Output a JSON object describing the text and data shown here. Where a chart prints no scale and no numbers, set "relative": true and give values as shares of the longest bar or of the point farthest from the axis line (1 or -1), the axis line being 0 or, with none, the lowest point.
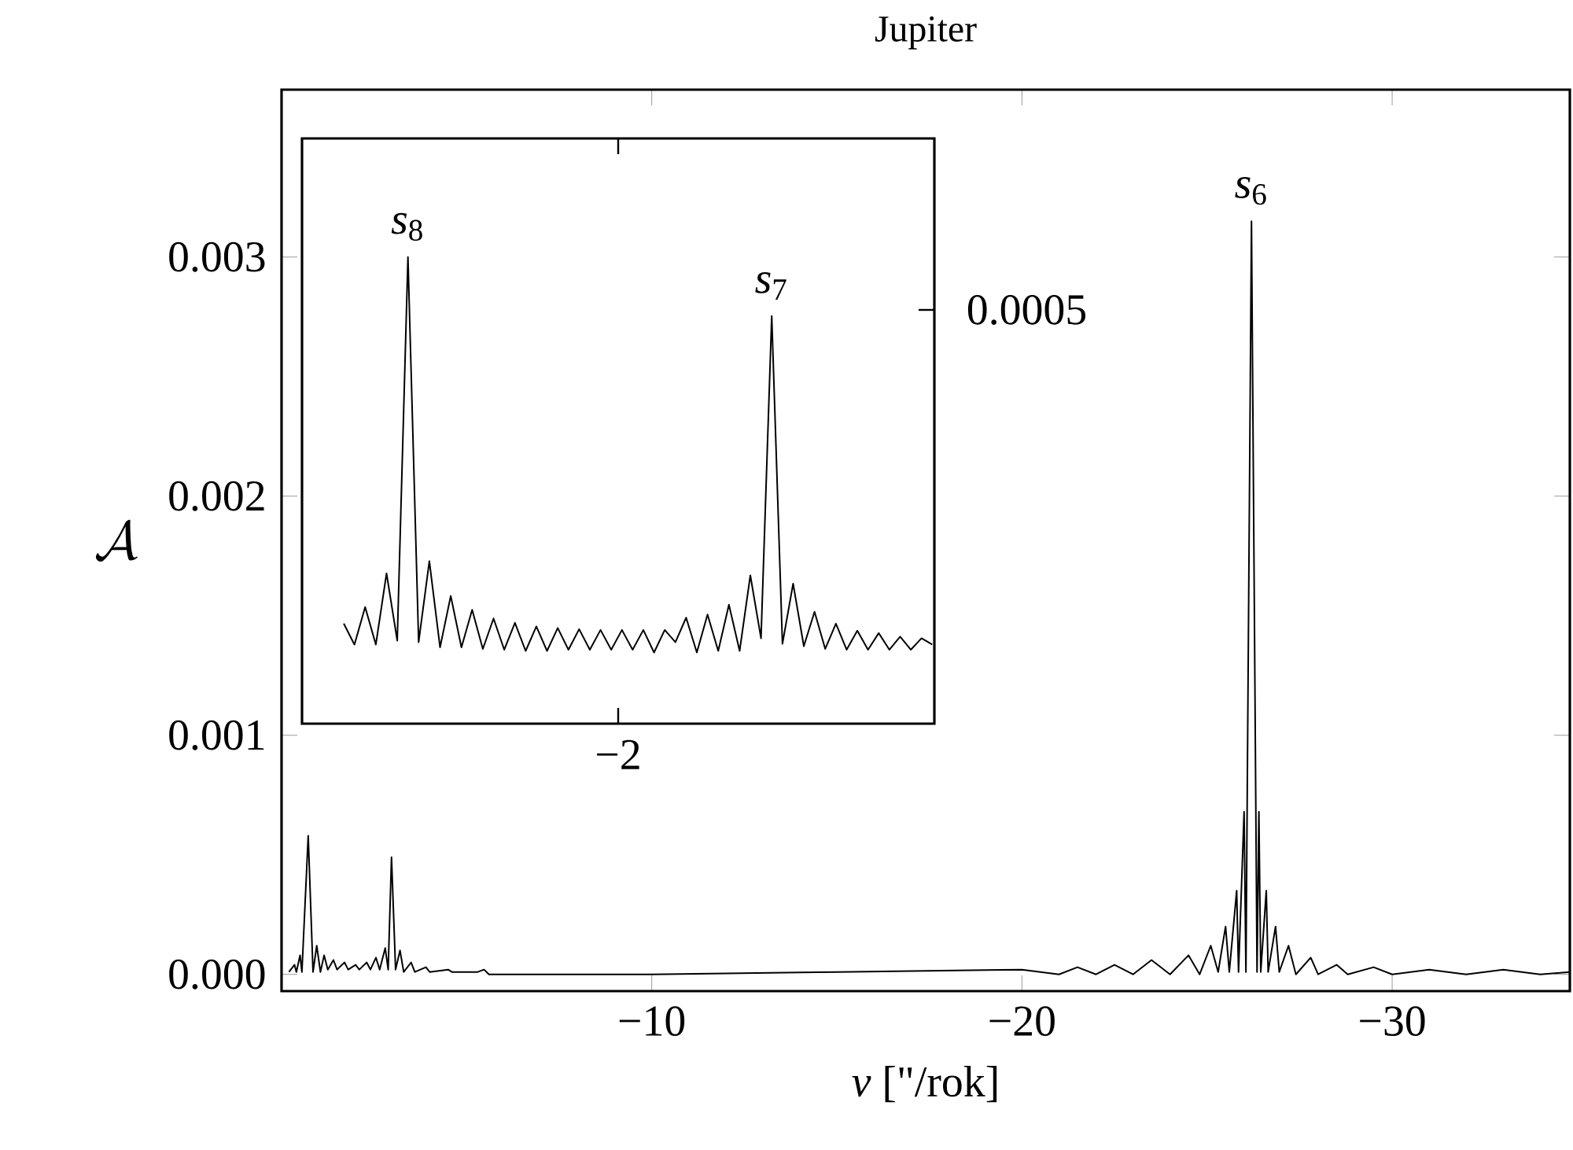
{
  "chart_data": [
    {
      "type": "line",
      "title": "Jupiter",
      "xlabel": "*ν* [\"/rok]",
      "ylabel": "\\mathcal{A}",
      "color": "#000000",
      "x": [
        -0.2,
        -0.35,
        -0.4,
        -0.5,
        -0.55,
        -0.72,
        -0.85,
        -0.95,
        -1.05,
        -1.15,
        -1.25,
        -1.4,
        -1.5,
        -1.7,
        -1.8,
        -2.0,
        -2.1,
        -2.3,
        -2.4,
        -2.55,
        -2.65,
        -2.8,
        -2.88,
        -2.97,
        -3.08,
        -3.2,
        -3.3,
        -3.5,
        -3.6,
        -3.9,
        -4.0,
        -4.5,
        -4.6,
        -5.3,
        -5.47,
        -5.6,
        -10,
        -15,
        -20,
        -21,
        -21.5,
        -22,
        -22.5,
        -23,
        -23.5,
        -24,
        -24.5,
        -24.8,
        -25.1,
        -25.3,
        -25.5,
        -25.6,
        -25.8,
        -25.85,
        -26.0,
        -26.05,
        -26.2,
        -26.35,
        -26.4,
        -26.45,
        -26.6,
        -26.65,
        -26.85,
        -26.95,
        -27.2,
        -27.4,
        -27.8,
        -28.0,
        -28.5,
        -28.8,
        -29.5,
        -30,
        -31,
        -32,
        -33,
        -34,
        -34.8
      ],
      "values": [
        1e-05,
        4e-05,
        1e-05,
        8e-05,
        1e-05,
        0.00058,
        1e-05,
        0.00012,
        1e-05,
        8e-05,
        2e-05,
        6e-05,
        2e-05,
        5e-05,
        2e-05,
        4e-05,
        2e-05,
        5e-05,
        2e-05,
        7e-05,
        2e-05,
        0.00011,
        2e-05,
        0.00049,
        2e-05,
        0.0001,
        1e-05,
        5e-05,
        1e-05,
        3e-05,
        1e-05,
        2e-05,
        1e-05,
        1e-05,
        2e-05,
        0,
        0,
        1e-05,
        2e-05,
        0,
        3e-05,
        0,
        4e-05,
        0,
        6e-05,
        0,
        8e-05,
        0,
        0.00012,
        1e-05,
        0.0002,
        1e-05,
        0.00035,
        1e-05,
        0.00068,
        1e-05,
        0.00315,
        1e-05,
        0.00068,
        1e-05,
        0.00035,
        1e-05,
        0.0002,
        1e-05,
        0.00012,
        0,
        7e-05,
        0,
        4e-05,
        0,
        3e-05,
        0,
        2e-05,
        0,
        2e-05,
        0,
        1e-05
      ],
      "xlim": [
        0,
        -34.8
      ],
      "ylim": [
        -7e-05,
        0.0037
      ],
      "xticks": [
        {
          "value": -10,
          "label": "−10"
        },
        {
          "value": -20,
          "label": "−20"
        },
        {
          "value": -30,
          "label": "−30"
        }
      ],
      "yticks": [
        {
          "value": 0,
          "label": "0.000"
        },
        {
          "value": 0.001,
          "label": "0.001"
        },
        {
          "value": 0.002,
          "label": "0.002"
        },
        {
          "value": 0.003,
          "label": "0.003"
        }
      ],
      "annotations": [
        {
          "text": "*s*$_{6}$",
          "x": -26.2,
          "y": 0.00315
        }
      ]
    },
    {
      "type": "line",
      "color": "#000000",
      "relative": true,
      "categories": [
        null,
        null,
        null,
        null,
        null,
        null,
        null,
        null,
        null,
        null,
        null,
        null,
        null,
        null,
        null,
        null,
        null,
        null,
        null,
        null,
        null,
        null,
        null,
        null,
        null,
        null,
        null,
        null,
        null,
        null,
        null,
        null,
        null,
        null,
        null,
        null,
        null,
        null,
        null,
        null,
        null,
        null,
        null,
        null,
        null,
        null,
        null,
        null,
        null,
        null,
        null,
        null,
        null,
        null,
        null,
        null
      ],
      "values": [
        0.073,
        0.02,
        0.115,
        0.02,
        0.2,
        0.03,
        1,
        0.026,
        0.231,
        0.013,
        0.143,
        0.013,
        0.108,
        0.009,
        0.086,
        0.007,
        0.075,
        0.004,
        0.066,
        0.004,
        0.062,
        0.007,
        0.059,
        0.007,
        0.057,
        0.007,
        0.057,
        0.007,
        0.057,
        0,
        0.057,
        0.026,
        0.088,
        0,
        0.096,
        0.004,
        0.121,
        0.004,
        0.195,
        0.036,
        0.851,
        0.022,
        0.174,
        0.016,
        0.103,
        0.009,
        0.073,
        0.007,
        0.055,
        0.007,
        0.049,
        0.007,
        0.04,
        0.007,
        0.036,
        0.02
      ],
      "annotations": [
        {
          "text": "*s*$_{8}$",
          "y": 1
        },
        {
          "text": "*s*$_{7}$",
          "y": 0.851
        },
        "−2",
        "0.0005"
      ]
    }
  ]
}
